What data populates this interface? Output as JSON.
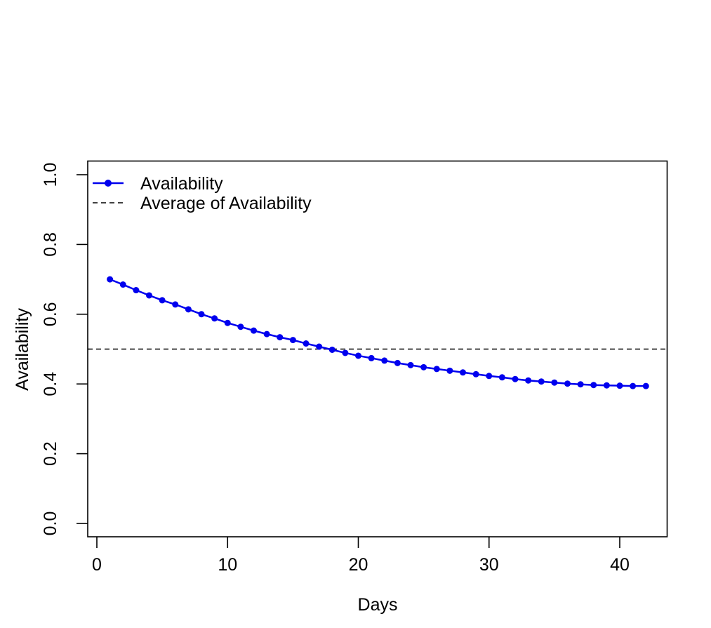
{
  "figure": {
    "background": "#ffffff",
    "text_color": "#000000"
  },
  "legend": {
    "position": "top-left",
    "border": "none",
    "items": [
      {
        "label": "Availability",
        "swatch": "solid-line-with-marker",
        "color": "#0000EE"
      },
      {
        "label": "Average of Availability",
        "swatch": "dashed-line",
        "color": "#000000"
      }
    ]
  },
  "chart_data": {
    "type": "line",
    "title": "",
    "xlabel": "Days",
    "ylabel": "Availability",
    "grid": false,
    "legend_position": "top-left",
    "xlim": [
      -0.7,
      43.5
    ],
    "ylim": [
      -0.04,
      1.04
    ],
    "xticks": [
      0,
      10,
      20,
      30,
      40
    ],
    "xtick_labels": [
      "0",
      "10",
      "20",
      "30",
      "40"
    ],
    "yticks": [
      0.0,
      0.2,
      0.4,
      0.6,
      0.8,
      1.0
    ],
    "ytick_labels": [
      "0.0",
      "0.2",
      "0.4",
      "0.6",
      "0.8",
      "1.0"
    ],
    "series": [
      {
        "name": "Availability",
        "color": "#0000EE",
        "marker": "filled-circle",
        "line_style": "solid",
        "x": [
          1,
          2,
          3,
          4,
          5,
          6,
          7,
          8,
          9,
          10,
          11,
          12,
          13,
          14,
          15,
          16,
          17,
          18,
          19,
          20,
          21,
          22,
          23,
          24,
          25,
          26,
          27,
          28,
          29,
          30,
          31,
          32,
          33,
          34,
          35,
          36,
          37,
          38,
          39,
          40,
          41,
          42
        ],
        "values": [
          0.7,
          0.685,
          0.669,
          0.654,
          0.64,
          0.628,
          0.614,
          0.6,
          0.588,
          0.575,
          0.564,
          0.553,
          0.543,
          0.534,
          0.526,
          0.516,
          0.507,
          0.498,
          0.489,
          0.481,
          0.474,
          0.467,
          0.46,
          0.454,
          0.448,
          0.443,
          0.438,
          0.433,
          0.428,
          0.423,
          0.419,
          0.414,
          0.41,
          0.407,
          0.404,
          0.401,
          0.399,
          0.397,
          0.396,
          0.395,
          0.394,
          0.394
        ]
      }
    ],
    "reference_line": {
      "name": "Average of Availability",
      "value": 0.5,
      "color": "#000000",
      "line_style": "dashed"
    }
  }
}
